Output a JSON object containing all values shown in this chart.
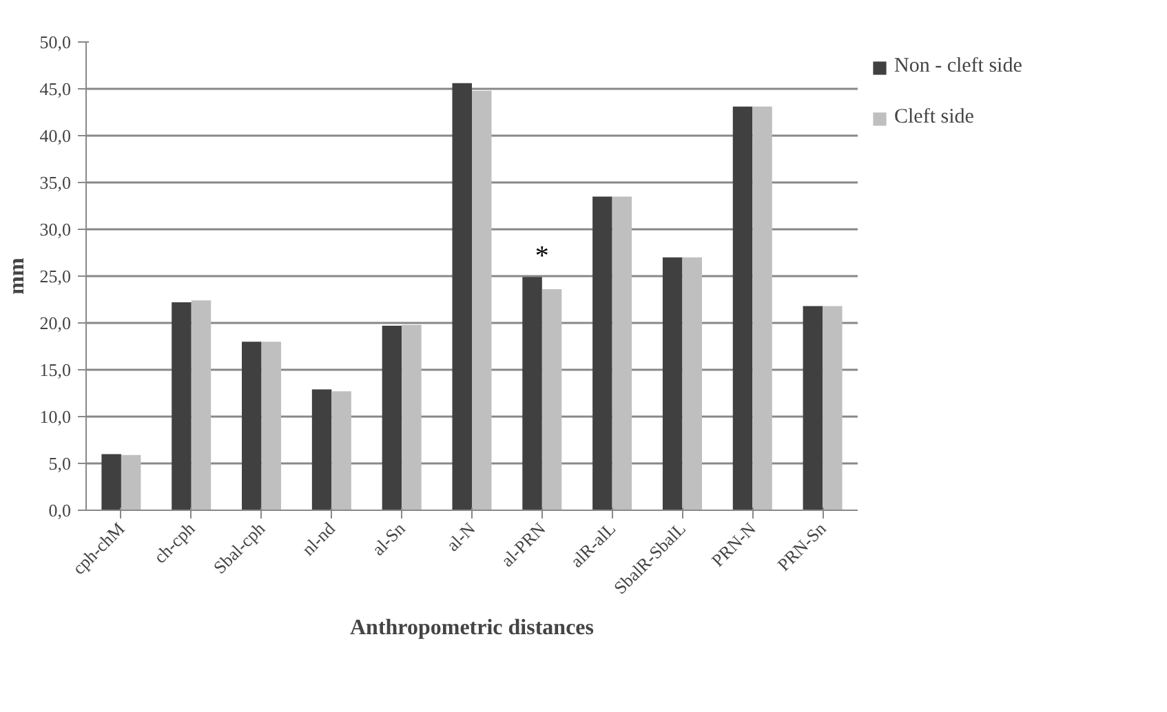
{
  "chart_data": {
    "type": "bar",
    "xlabel": "Anthropometric distances",
    "ylabel": "mm",
    "categories": [
      "cph-chM",
      "ch-cph",
      "Sbal-cph",
      "nl-nd",
      "al-Sn",
      "al-N",
      "al-PRN",
      "alR-alL",
      "SbalR-SbalL",
      "PRN-N",
      "PRN-Sn"
    ],
    "series": [
      {
        "name": "Non - cleft side",
        "color": "#404040",
        "values": [
          6.0,
          22.2,
          18.0,
          12.9,
          19.7,
          45.6,
          24.9,
          33.5,
          27.0,
          43.1,
          21.8
        ]
      },
      {
        "name": "Cleft side",
        "color": "#bfbfbf",
        "values": [
          5.9,
          22.4,
          18.0,
          12.7,
          19.8,
          44.8,
          23.6,
          33.5,
          27.0,
          43.1,
          21.8
        ]
      }
    ],
    "ylim": [
      0,
      50
    ],
    "yticks": [
      {
        "value": 0,
        "label": "0,0"
      },
      {
        "value": 5,
        "label": "5,0"
      },
      {
        "value": 10,
        "label": "10,0"
      },
      {
        "value": 15,
        "label": "15,0"
      },
      {
        "value": 20,
        "label": "20,0"
      },
      {
        "value": 25,
        "label": "25,0"
      },
      {
        "value": 30,
        "label": "30,0"
      },
      {
        "value": 35,
        "label": "35,0"
      },
      {
        "value": 40,
        "label": "40,0"
      },
      {
        "value": 45,
        "label": "45,0"
      },
      {
        "value": 50,
        "label": "50,0"
      }
    ],
    "annotations": [
      {
        "text": "*",
        "x": "al-PRN",
        "y": 24.9
      }
    ],
    "grid": "y",
    "legend": "right"
  }
}
